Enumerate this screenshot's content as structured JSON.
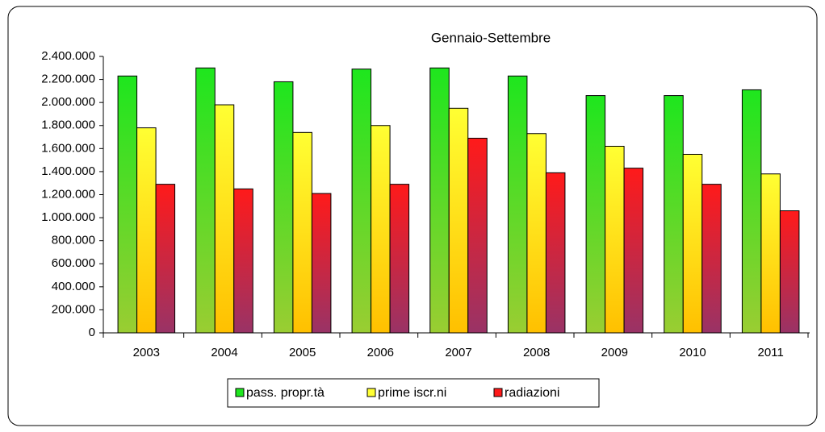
{
  "chart_data": {
    "type": "bar",
    "title": "Gennaio-Settembre",
    "categories": [
      "2003",
      "2004",
      "2005",
      "2006",
      "2007",
      "2008",
      "2009",
      "2010",
      "2011"
    ],
    "series": [
      {
        "name": "pass. propr.tà",
        "color": "#1ee61e",
        "color_bottom": "#9acd32",
        "values": [
          2230000,
          2300000,
          2180000,
          2290000,
          2300000,
          2230000,
          2060000,
          2060000,
          2110000
        ]
      },
      {
        "name": "prime iscr.ni",
        "color": "#ffff33",
        "color_bottom": "#ffc000",
        "values": [
          1780000,
          1980000,
          1740000,
          1800000,
          1950000,
          1730000,
          1620000,
          1550000,
          1380000
        ]
      },
      {
        "name": "radiazioni",
        "color": "#ff1a1a",
        "color_bottom": "#993366",
        "values": [
          1290000,
          1250000,
          1210000,
          1290000,
          1690000,
          1390000,
          1430000,
          1290000,
          1060000
        ]
      }
    ],
    "ylim": [
      0,
      2400000
    ],
    "yticks": [
      0,
      {
        "value": 200000,
        "label": "200.000"
      },
      {
        "value": 400000,
        "label": "400.000"
      },
      {
        "value": 600000,
        "label": "600.000"
      },
      {
        "value": 800000,
        "label": "800.000"
      },
      {
        "value": 1000000,
        "label": "1.000.000"
      },
      {
        "value": 1200000,
        "label": "1.200.000"
      },
      {
        "value": 1400000,
        "label": "1.400.000"
      },
      {
        "value": 1600000,
        "label": "1.600.000"
      },
      {
        "value": 1800000,
        "label": "1.800.000"
      },
      {
        "value": 2000000,
        "label": "2.000.000"
      },
      {
        "value": 2200000,
        "label": "2.200.000"
      },
      {
        "value": 2400000,
        "label": "2.400.000"
      }
    ],
    "grid": false
  }
}
